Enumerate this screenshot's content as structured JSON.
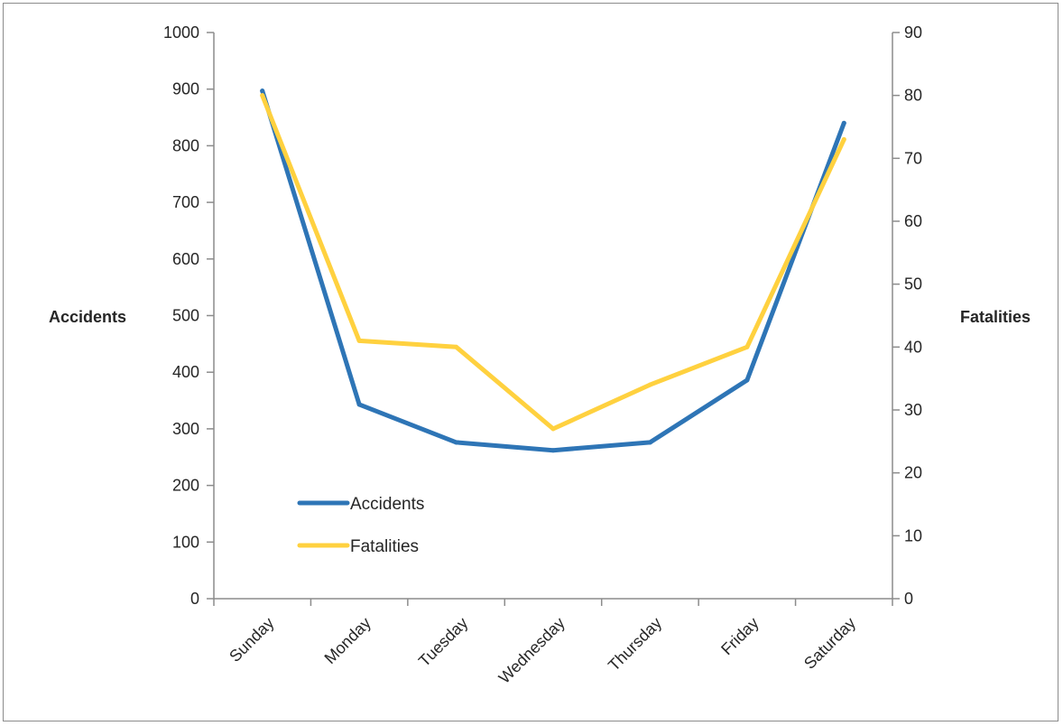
{
  "chart_data": {
    "type": "line",
    "categories": [
      "Sunday",
      "Monday",
      "Tuesday",
      "Wednesday",
      "Thursday",
      "Friday",
      "Saturday"
    ],
    "series": [
      {
        "name": "Accidents",
        "axis": "left",
        "color": "#2E75B6",
        "values": [
          897,
          343,
          276,
          262,
          276,
          386,
          840
        ]
      },
      {
        "name": "Fatalities",
        "axis": "right",
        "color": "#FFD13F",
        "values": [
          80,
          41,
          40,
          27,
          34,
          40,
          73
        ]
      }
    ],
    "y_left": {
      "label": "Accidents",
      "ylim": [
        0,
        1000
      ],
      "ticks": [
        "0",
        "100",
        "200",
        "300",
        "400",
        "500",
        "600",
        "700",
        "800",
        "900",
        "1000"
      ]
    },
    "y_right": {
      "label": "Fatalities",
      "ylim": [
        0,
        90
      ],
      "ticks": [
        "0",
        "10",
        "20",
        "30",
        "40",
        "50",
        "60",
        "70",
        "80",
        "90"
      ]
    },
    "grid": false,
    "legend": {
      "placement": "inside-lower-left",
      "entries": [
        "Accidents",
        "Fatalities"
      ]
    }
  }
}
